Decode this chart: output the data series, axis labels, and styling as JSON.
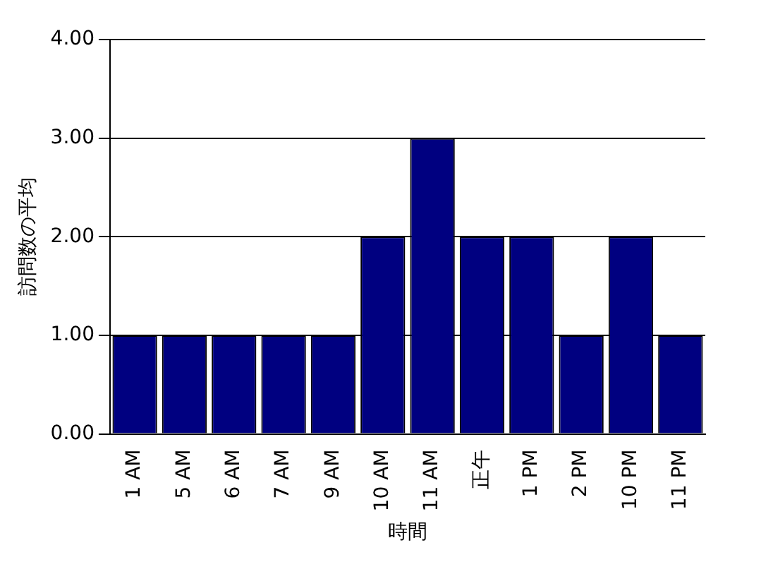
{
  "chart_data": {
    "type": "bar",
    "xlabel": "時間",
    "ylabel": "訪問数の平均",
    "categories": [
      "1 AM",
      "5 AM",
      "6 AM",
      "7 AM",
      "9 AM",
      "10 AM",
      "11 AM",
      "正午",
      "1 PM",
      "2 PM",
      "10 PM",
      "11 PM"
    ],
    "values": [
      1,
      1,
      1,
      1,
      1,
      2,
      3,
      2,
      2,
      1,
      2,
      1
    ],
    "color": "#000080",
    "ylim": [
      0,
      4
    ],
    "yticks": [
      {
        "value": 0,
        "label": "0.00"
      },
      {
        "value": 1,
        "label": "1.00"
      },
      {
        "value": 2,
        "label": "2.00"
      },
      {
        "value": 3,
        "label": "3.00"
      },
      {
        "value": 4,
        "label": "4.00"
      }
    ],
    "grid": "y",
    "legend": false
  }
}
